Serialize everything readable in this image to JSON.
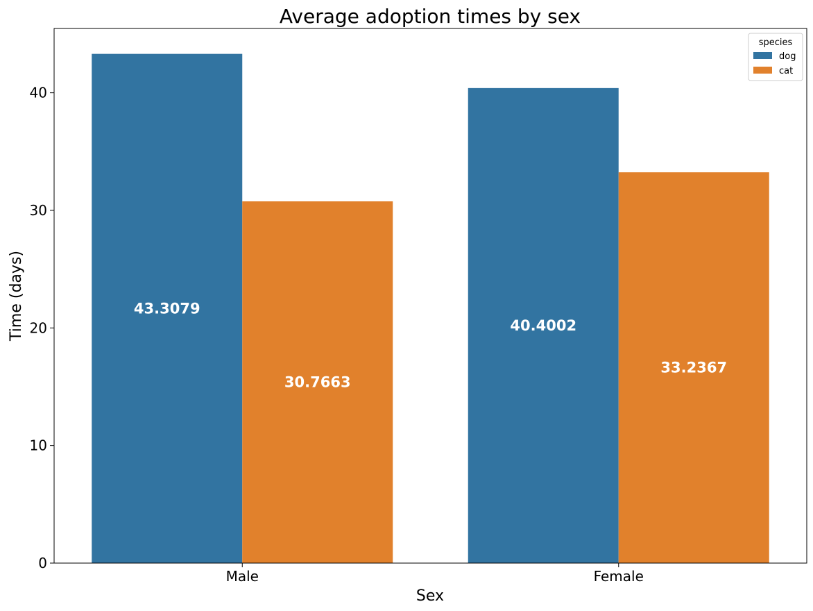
{
  "chart_data": {
    "type": "bar",
    "title": "Average adoption times by sex",
    "xlabel": "Sex",
    "ylabel": "Time (days)",
    "categories": [
      "Male",
      "Female"
    ],
    "series": [
      {
        "name": "dog",
        "color": "#3274a1",
        "values": [
          43.3079,
          40.4002
        ]
      },
      {
        "name": "cat",
        "color": "#e1812c",
        "values": [
          30.7663,
          33.2367
        ]
      }
    ],
    "data_labels": [
      [
        "43.3079",
        "40.4002"
      ],
      [
        "30.7663",
        "33.2367"
      ]
    ],
    "ylim": [
      0,
      45.47
    ],
    "yticks": [
      0,
      10,
      20,
      30,
      40
    ],
    "ytick_labels": [
      "0",
      "10",
      "20",
      "30",
      "40"
    ],
    "grid": false,
    "legend": {
      "title": "species",
      "position": "top-right"
    }
  }
}
